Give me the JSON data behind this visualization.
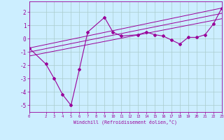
{
  "xlabel": "Windchill (Refroidissement éolien,°C)",
  "background_color": "#cceeff",
  "grid_color": "#aacccc",
  "line_color": "#990099",
  "x_ticks": [
    0,
    2,
    3,
    4,
    5,
    6,
    7,
    8,
    9,
    10,
    11,
    12,
    13,
    14,
    15,
    16,
    17,
    18,
    19,
    20,
    21,
    22,
    23
  ],
  "ylim": [
    -5.5,
    2.8
  ],
  "xlim": [
    0,
    23
  ],
  "series1_x": [
    0,
    2,
    3,
    4,
    5,
    6,
    7,
    9,
    10,
    11,
    13,
    14,
    15,
    16,
    17,
    18,
    19,
    20,
    21,
    22,
    23
  ],
  "series1_y": [
    -0.7,
    -1.9,
    -3.0,
    -4.2,
    -5.0,
    -2.3,
    0.5,
    1.6,
    0.5,
    0.2,
    0.3,
    0.5,
    0.3,
    0.2,
    -0.1,
    -0.4,
    0.1,
    0.1,
    0.3,
    1.1,
    2.3
  ],
  "series2_x": [
    0,
    23
  ],
  "series2_y": [
    -0.7,
    2.3
  ],
  "series3_x": [
    0,
    23
  ],
  "series3_y": [
    -1.0,
    1.9
  ],
  "series4_x": [
    0,
    23
  ],
  "series4_y": [
    -1.3,
    1.5
  ],
  "yticks": [
    -5,
    -4,
    -3,
    -2,
    -1,
    0,
    1,
    2
  ]
}
